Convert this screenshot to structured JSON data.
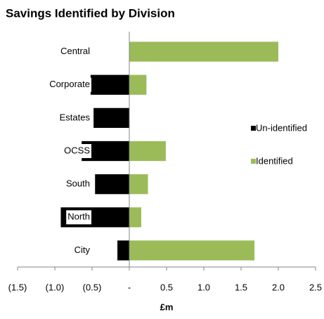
{
  "chart_data": {
    "type": "bar",
    "orientation": "horizontal",
    "title": "Savings Identified by Division",
    "x_label": "£m",
    "categories": [
      "Central",
      "Corporate",
      "Estates",
      "OCSS",
      "South",
      "North",
      "City"
    ],
    "series": [
      {
        "name": "Un-identified",
        "color": "#000000",
        "values": [
          0,
          -0.52,
          -0.48,
          -0.64,
          -0.46,
          -0.92,
          -0.16
        ]
      },
      {
        "name": "Identified",
        "color": "#9bbb59",
        "values": [
          2.0,
          0.23,
          0,
          0.49,
          0.25,
          0.16,
          1.68
        ]
      }
    ],
    "xlim": [
      -1.5,
      2.5
    ],
    "xticks": [
      {
        "value": -1.5,
        "label": "(1.5)"
      },
      {
        "value": -1.0,
        "label": "(1.0)"
      },
      {
        "value": -0.5,
        "label": "(0.5)"
      },
      {
        "value": 0,
        "label": "-"
      },
      0.5,
      {
        "value": 1.0,
        "label": "1.0"
      },
      1.5,
      {
        "value": 2.0,
        "label": "2.0"
      },
      2.5
    ],
    "grid": false,
    "legend": "right"
  }
}
